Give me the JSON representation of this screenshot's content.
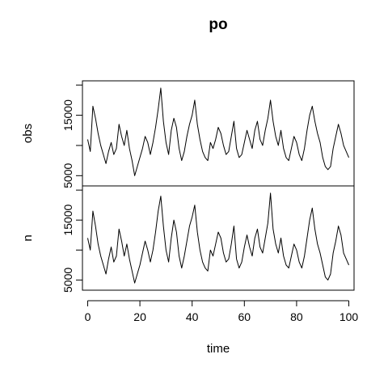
{
  "chart_data": {
    "type": "line",
    "title": "po",
    "xlabel": "time",
    "xlim": [
      -2,
      102
    ],
    "x_ticks": [
      0,
      20,
      40,
      60,
      80,
      100
    ],
    "line_color": "#000000",
    "panels": [
      {
        "name": "obs",
        "ylabel": "obs",
        "ylim": [
          4000,
          20000
        ],
        "y_ticks": [
          5000,
          15000
        ],
        "y_minor_ticks": [
          10000,
          20000
        ],
        "series": [
          {
            "x": [
              0,
              1,
              2,
              3,
              4,
              5,
              6,
              7,
              8,
              9,
              10,
              11,
              12,
              13,
              14,
              15,
              16,
              17,
              18,
              19,
              20,
              21,
              22,
              23,
              24,
              25,
              26,
              27,
              28,
              29,
              30,
              31,
              32,
              33,
              34,
              35,
              36,
              37,
              38,
              39,
              40,
              41,
              42,
              43,
              44,
              45,
              46,
              47,
              48,
              49,
              50,
              51,
              52,
              53,
              54,
              55,
              56,
              57,
              58,
              59,
              60,
              61,
              62,
              63,
              64,
              65,
              66,
              67,
              68,
              69,
              70,
              71,
              72,
              73,
              74,
              75,
              76,
              77,
              78,
              79,
              80,
              81,
              82,
              83,
              84,
              85,
              86,
              87,
              88,
              89,
              90,
              91,
              92,
              93,
              94,
              95,
              96,
              97,
              98,
              99,
              100
            ],
            "values": [
              11000,
              9000,
              16500,
              14500,
              12000,
              10000,
              8500,
              7000,
              9000,
              10500,
              8500,
              9500,
              13500,
              11500,
              10000,
              12500,
              9500,
              7500,
              5000,
              6500,
              8000,
              9500,
              11500,
              10500,
              8500,
              10500,
              13000,
              16000,
              19500,
              14000,
              10500,
              8500,
              12500,
              14500,
              13000,
              9500,
              7500,
              9000,
              11500,
              13500,
              15000,
              17500,
              13500,
              11000,
              9000,
              8000,
              7500,
              10500,
              9500,
              11000,
              13000,
              12000,
              10000,
              8500,
              9000,
              11500,
              14000,
              9500,
              8000,
              8500,
              10500,
              12500,
              11000,
              9500,
              12500,
              14000,
              11000,
              10000,
              12500,
              14500,
              17500,
              14000,
              11500,
              10000,
              12500,
              9500,
              8000,
              7500,
              9500,
              11500,
              10500,
              8500,
              7500,
              9500,
              12500,
              15000,
              16500,
              14000,
              12000,
              10500,
              8000,
              6500,
              6000,
              6500,
              9500,
              11500,
              13500,
              12000,
              10000,
              9000,
              8000
            ]
          }
        ]
      },
      {
        "name": "n",
        "ylabel": "n",
        "ylim": [
          4000,
          20000
        ],
        "y_ticks": [
          5000,
          15000
        ],
        "y_minor_ticks": [
          10000,
          20000
        ],
        "series": [
          {
            "x": [
              0,
              1,
              2,
              3,
              4,
              5,
              6,
              7,
              8,
              9,
              10,
              11,
              12,
              13,
              14,
              15,
              16,
              17,
              18,
              19,
              20,
              21,
              22,
              23,
              24,
              25,
              26,
              27,
              28,
              29,
              30,
              31,
              32,
              33,
              34,
              35,
              36,
              37,
              38,
              39,
              40,
              41,
              42,
              43,
              44,
              45,
              46,
              47,
              48,
              49,
              50,
              51,
              52,
              53,
              54,
              55,
              56,
              57,
              58,
              59,
              60,
              61,
              62,
              63,
              64,
              65,
              66,
              67,
              68,
              69,
              70,
              71,
              72,
              73,
              74,
              75,
              76,
              77,
              78,
              79,
              80,
              81,
              82,
              83,
              84,
              85,
              86,
              87,
              88,
              89,
              90,
              91,
              92,
              93,
              94,
              95,
              96,
              97,
              98,
              99,
              100
            ],
            "values": [
              12000,
              10000,
              16500,
              14000,
              11000,
              9000,
              7500,
              6000,
              8500,
              10500,
              8000,
              9000,
              13500,
              11500,
              9000,
              11000,
              8500,
              6500,
              4500,
              6000,
              7500,
              9500,
              11500,
              10000,
              8000,
              10000,
              13000,
              16500,
              19000,
              14000,
              10000,
              8000,
              12000,
              15000,
              13000,
              9000,
              7000,
              9000,
              11500,
              14000,
              15500,
              17500,
              13000,
              10000,
              8000,
              7000,
              6500,
              10000,
              9000,
              11000,
              13000,
              12000,
              9500,
              8000,
              8500,
              11000,
              14000,
              8500,
              7000,
              8000,
              10500,
              12500,
              10500,
              9000,
              12000,
              13500,
              10500,
              9500,
              12000,
              14500,
              19500,
              13500,
              11000,
              9500,
              12000,
              9000,
              7500,
              7000,
              9000,
              11000,
              10000,
              8000,
              7000,
              9000,
              12000,
              15000,
              17000,
              13500,
              11000,
              9500,
              7500,
              5500,
              5000,
              6000,
              9500,
              11500,
              14000,
              12500,
              9500,
              8500,
              7500
            ]
          }
        ]
      }
    ]
  }
}
